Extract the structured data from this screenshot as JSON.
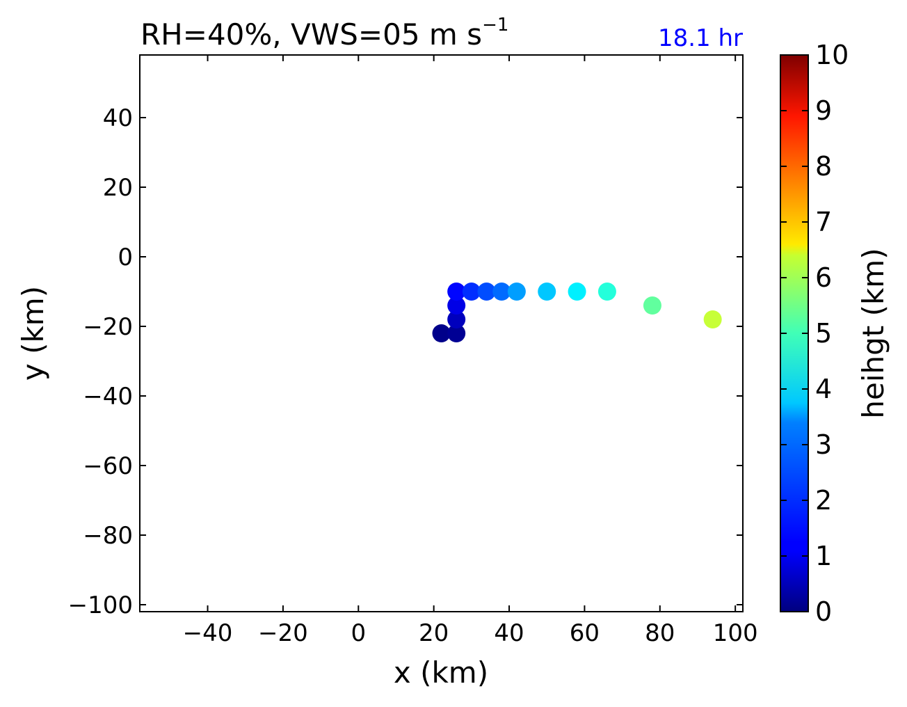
{
  "chart_data": {
    "type": "scatter",
    "title": "RH=40%, VWS=05 m s",
    "title_superscript": "−1",
    "time_label": "18.1 hr",
    "time_color": "#0000ff",
    "xlabel": "x (km)",
    "ylabel": "y (km)",
    "xlim": [
      -58,
      102
    ],
    "ylim": [
      -102,
      58
    ],
    "xticks": [
      -40,
      -20,
      0,
      20,
      40,
      60,
      80,
      100
    ],
    "yticks": [
      -100,
      -80,
      -60,
      -40,
      -20,
      0,
      20,
      40
    ],
    "grid": false,
    "colormap": "jet",
    "colorbar": {
      "label": "heihgt (km)",
      "range": [
        0,
        10
      ],
      "ticks": [
        0,
        1,
        2,
        3,
        4,
        5,
        6,
        7,
        8,
        9,
        10
      ],
      "position": "right"
    },
    "points": [
      {
        "x": 22,
        "y": -22,
        "height": 0.1
      },
      {
        "x": 26,
        "y": -22,
        "height": 0.2
      },
      {
        "x": 26,
        "y": -18,
        "height": 0.6
      },
      {
        "x": 26,
        "y": -14,
        "height": 1.0
      },
      {
        "x": 26,
        "y": -10,
        "height": 1.3
      },
      {
        "x": 30,
        "y": -10,
        "height": 1.7
      },
      {
        "x": 34,
        "y": -10,
        "height": 2.0
      },
      {
        "x": 38,
        "y": -10,
        "height": 2.3
      },
      {
        "x": 42,
        "y": -10,
        "height": 2.8
      },
      {
        "x": 50,
        "y": -10,
        "height": 3.2
      },
      {
        "x": 58,
        "y": -10,
        "height": 3.6
      },
      {
        "x": 66,
        "y": -10,
        "height": 4.1
      },
      {
        "x": 78,
        "y": -14,
        "height": 4.7
      },
      {
        "x": 94,
        "y": -18,
        "height": 5.7
      }
    ]
  }
}
